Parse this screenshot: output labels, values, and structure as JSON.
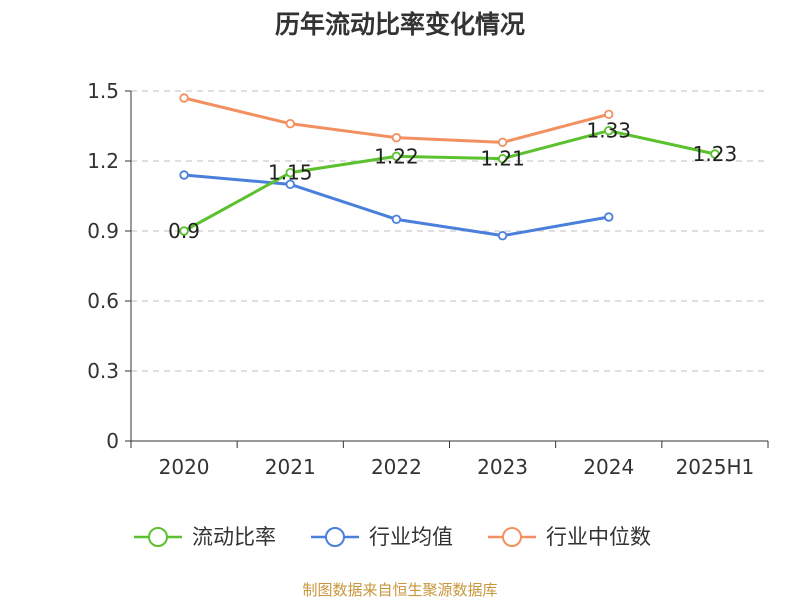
{
  "chart_data": {
    "type": "line",
    "title": "历年流动比率变化情况",
    "categories": [
      "2020",
      "2021",
      "2022",
      "2023",
      "2024",
      "2025H1"
    ],
    "ylim": [
      0,
      1.5
    ],
    "yticks": [
      "0",
      "0.3",
      "0.6",
      "0.9",
      "1.2",
      "1.5"
    ],
    "grid": true,
    "legend_position": "bottom",
    "series": [
      {
        "name": "流动比率",
        "color": "#5cc12e",
        "values": [
          0.9,
          1.15,
          1.22,
          1.21,
          1.33,
          1.23
        ],
        "labels": [
          "0.9",
          "1.15",
          "1.22",
          "1.21",
          "1.33",
          "1.23"
        ]
      },
      {
        "name": "行业均值",
        "color": "#4a7fdc",
        "values": [
          1.14,
          1.1,
          0.95,
          0.88,
          0.96,
          null
        ]
      },
      {
        "name": "行业中位数",
        "color": "#f39060",
        "values": [
          1.47,
          1.36,
          1.3,
          1.28,
          1.4,
          null
        ]
      }
    ]
  },
  "source": "制图数据来自恒生聚源数据库"
}
